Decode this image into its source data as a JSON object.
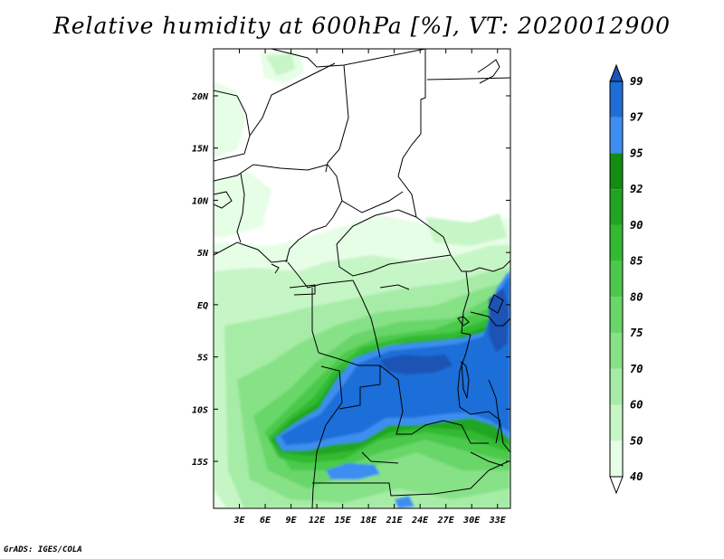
{
  "title": "Relative humidity at 600hPa [%], VT: 2020012900",
  "credit": "GrADS: IGES/COLA",
  "map": {
    "lat_labels": [
      "20N",
      "15N",
      "10N",
      "5N",
      "EQ",
      "5S",
      "10S",
      "15S"
    ],
    "lon_labels": [
      "3E",
      "6E",
      "9E",
      "12E",
      "15E",
      "18E",
      "21E",
      "24E",
      "27E",
      "30E",
      "33E"
    ],
    "lat_range": [
      -19.5,
      24.5
    ],
    "lon_range": [
      0,
      34.5
    ]
  },
  "colorbar": {
    "levels": [
      "40",
      "50",
      "60",
      "70",
      "75",
      "80",
      "85",
      "90",
      "92",
      "95",
      "97",
      "99"
    ],
    "colors": [
      "#ffffff",
      "#e6fde6",
      "#c6f5c6",
      "#a6eca6",
      "#87e187",
      "#69d669",
      "#4cc94c",
      "#33ba33",
      "#20a520",
      "#128c12",
      "#3d8ef0",
      "#1f6ed8",
      "#1a52b5"
    ]
  }
}
